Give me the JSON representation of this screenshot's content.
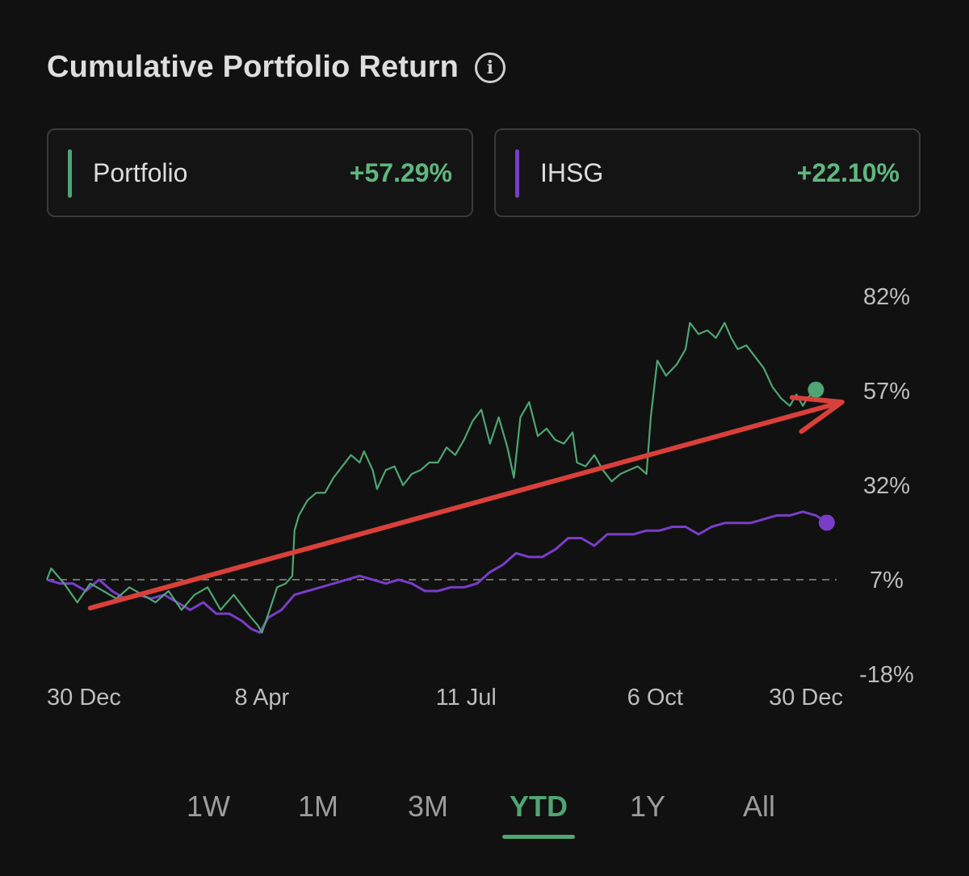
{
  "header": {
    "title": "Cumulative Portfolio Return",
    "info_icon": "info-icon"
  },
  "legend": [
    {
      "name": "Portfolio",
      "value": "+57.29%",
      "bar_color": "#4fa574",
      "value_color": "#5fb77f"
    },
    {
      "name": "IHSG",
      "value": "+22.10%",
      "bar_color": "#7a3dc8",
      "value_color": "#5fb77f"
    }
  ],
  "tabs": {
    "items": [
      "1W",
      "1M",
      "3M",
      "YTD",
      "1Y",
      "All"
    ],
    "active": "YTD"
  },
  "colors": {
    "background": "#111111",
    "portfolio": "#4fa574",
    "ihsg": "#7a3dc8",
    "annotation_arrow": "#d9403a",
    "baseline": "#6e6e6e"
  },
  "chart_data": {
    "type": "line",
    "x_ticks": [
      "30 Dec",
      "8 Apr",
      "11 Jul",
      "6 Oct",
      "30 Dec"
    ],
    "x_tick_days": [
      0,
      99,
      193,
      280,
      365
    ],
    "y_ticks": [
      "82%",
      "57%",
      "32%",
      "7%",
      "-18%"
    ],
    "y_tick_values": [
      82,
      57,
      32,
      7,
      -18
    ],
    "ylim": [
      -18,
      82
    ],
    "xlim": [
      0,
      365
    ],
    "baseline": 7,
    "grid": false,
    "series": [
      {
        "name": "Portfolio",
        "color": "#4fa574",
        "final": 57.29,
        "points": [
          [
            0,
            7
          ],
          [
            2,
            10
          ],
          [
            8,
            6
          ],
          [
            14,
            1
          ],
          [
            20,
            6
          ],
          [
            26,
            4
          ],
          [
            32,
            2
          ],
          [
            38,
            5
          ],
          [
            44,
            3
          ],
          [
            50,
            1
          ],
          [
            56,
            4
          ],
          [
            62,
            -1
          ],
          [
            68,
            3
          ],
          [
            74,
            5
          ],
          [
            80,
            -1
          ],
          [
            86,
            3
          ],
          [
            90,
            0
          ],
          [
            94,
            -3
          ],
          [
            97,
            -5
          ],
          [
            99,
            -7
          ],
          [
            102,
            -2
          ],
          [
            106,
            5
          ],
          [
            110,
            6
          ],
          [
            113,
            8
          ],
          [
            114,
            20
          ],
          [
            116,
            24
          ],
          [
            120,
            28
          ],
          [
            124,
            30
          ],
          [
            128,
            30
          ],
          [
            132,
            34
          ],
          [
            136,
            37
          ],
          [
            140,
            40
          ],
          [
            144,
            38
          ],
          [
            146,
            41
          ],
          [
            150,
            36
          ],
          [
            152,
            31
          ],
          [
            156,
            36
          ],
          [
            160,
            37
          ],
          [
            164,
            32
          ],
          [
            168,
            35
          ],
          [
            172,
            36
          ],
          [
            176,
            38
          ],
          [
            180,
            38
          ],
          [
            184,
            42
          ],
          [
            188,
            40
          ],
          [
            192,
            44
          ],
          [
            196,
            49
          ],
          [
            200,
            52
          ],
          [
            204,
            43
          ],
          [
            208,
            50
          ],
          [
            212,
            42
          ],
          [
            215,
            34
          ],
          [
            218,
            50
          ],
          [
            222,
            54
          ],
          [
            226,
            45
          ],
          [
            230,
            47
          ],
          [
            234,
            44
          ],
          [
            238,
            43
          ],
          [
            242,
            46
          ],
          [
            244,
            38
          ],
          [
            248,
            37
          ],
          [
            252,
            40
          ],
          [
            256,
            36
          ],
          [
            260,
            33
          ],
          [
            264,
            35
          ],
          [
            268,
            36
          ],
          [
            272,
            37
          ],
          [
            276,
            35
          ],
          [
            278,
            50
          ],
          [
            281,
            65
          ],
          [
            285,
            61
          ],
          [
            290,
            64
          ],
          [
            294,
            68
          ],
          [
            296,
            75
          ],
          [
            300,
            72
          ],
          [
            304,
            73
          ],
          [
            308,
            71
          ],
          [
            312,
            75
          ],
          [
            315,
            71
          ],
          [
            318,
            68
          ],
          [
            322,
            69
          ],
          [
            326,
            66
          ],
          [
            330,
            63
          ],
          [
            334,
            58
          ],
          [
            338,
            55
          ],
          [
            342,
            53
          ],
          [
            345,
            56
          ],
          [
            348,
            53
          ],
          [
            350,
            55
          ],
          [
            354,
            57.29
          ]
        ]
      },
      {
        "name": "IHSG",
        "color": "#7a3dc8",
        "final": 22.1,
        "points": [
          [
            0,
            7
          ],
          [
            6,
            6
          ],
          [
            12,
            6
          ],
          [
            18,
            4
          ],
          [
            24,
            7
          ],
          [
            30,
            4
          ],
          [
            36,
            2
          ],
          [
            42,
            3
          ],
          [
            48,
            2
          ],
          [
            54,
            3
          ],
          [
            60,
            1
          ],
          [
            66,
            -1
          ],
          [
            72,
            1
          ],
          [
            78,
            -2
          ],
          [
            84,
            -2
          ],
          [
            90,
            -4
          ],
          [
            94,
            -6
          ],
          [
            98,
            -7
          ],
          [
            102,
            -3
          ],
          [
            108,
            -1
          ],
          [
            114,
            3
          ],
          [
            120,
            4
          ],
          [
            126,
            5
          ],
          [
            132,
            6
          ],
          [
            138,
            7
          ],
          [
            144,
            8
          ],
          [
            150,
            7
          ],
          [
            156,
            6
          ],
          [
            162,
            7
          ],
          [
            168,
            6
          ],
          [
            174,
            4
          ],
          [
            180,
            4
          ],
          [
            186,
            5
          ],
          [
            192,
            5
          ],
          [
            198,
            6
          ],
          [
            204,
            9
          ],
          [
            210,
            11
          ],
          [
            216,
            14
          ],
          [
            222,
            13
          ],
          [
            228,
            13
          ],
          [
            234,
            15
          ],
          [
            240,
            18
          ],
          [
            246,
            18
          ],
          [
            252,
            16
          ],
          [
            258,
            19
          ],
          [
            264,
            19
          ],
          [
            270,
            19
          ],
          [
            276,
            20
          ],
          [
            282,
            20
          ],
          [
            288,
            21
          ],
          [
            294,
            21
          ],
          [
            300,
            19
          ],
          [
            306,
            21
          ],
          [
            312,
            22
          ],
          [
            318,
            22
          ],
          [
            324,
            22
          ],
          [
            330,
            23
          ],
          [
            336,
            24
          ],
          [
            342,
            24
          ],
          [
            348,
            25
          ],
          [
            354,
            24
          ],
          [
            359,
            22.1
          ]
        ]
      }
    ],
    "annotation": {
      "type": "arrow",
      "from": [
        20,
        -0.5
      ],
      "to": [
        366,
        54
      ],
      "color": "#d9403a"
    }
  }
}
